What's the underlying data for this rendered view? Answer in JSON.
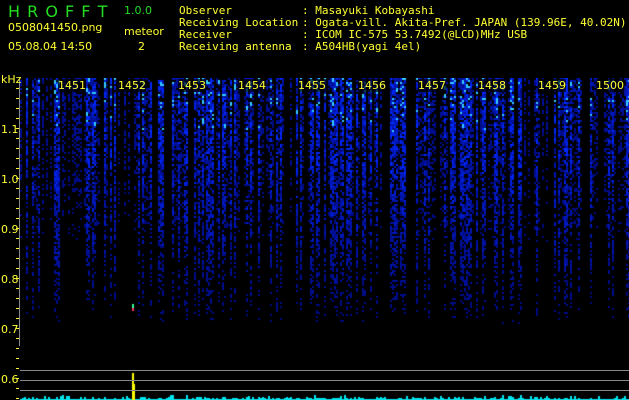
{
  "app": {
    "title": "H R O F F T",
    "version": "1.0.0"
  },
  "file": {
    "name": "0508041450.png",
    "datetime": "05.08.04 14:50"
  },
  "meteor": {
    "label": "meteor",
    "count": "2"
  },
  "info": [
    {
      "label": "Observer",
      "value": ": Masayuki Kobayashi"
    },
    {
      "label": "Receiving Location",
      "value": ": Ogata-vill. Akita-Pref. JAPAN (139.96E, 40.02N)"
    },
    {
      "label": "Receiver",
      "value": ": ICOM IC-575 53.7492(@LCD)MHz USB"
    },
    {
      "label": "Receiving antenna",
      "value": ": A504HB(yagi 4el)"
    }
  ],
  "axis": {
    "y_unit": "kHz",
    "y_ticks": [
      "1.1",
      "1.0",
      "0.9",
      "0.8",
      "0.7",
      "0.6"
    ],
    "x_ticks": [
      "1451",
      "1452",
      "1453",
      "1454",
      "1455",
      "1456",
      "1457",
      "1458",
      "1459",
      "1500"
    ]
  },
  "colors": {
    "text": "#ffff33",
    "title": "#22dd22",
    "signal": "#0033ff",
    "histogram": "#00e5ee"
  }
}
